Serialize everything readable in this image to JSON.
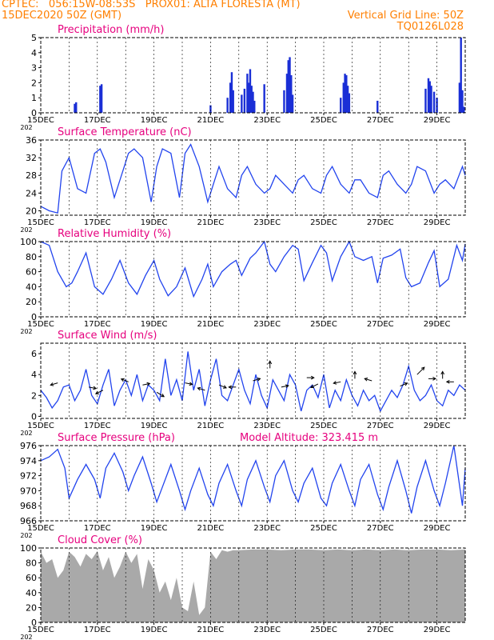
{
  "header": {
    "line1_left": "CPTEC:   056:15W-08:53S   PROX01: ALTA FLORESTA (MT)",
    "line2_left": "15DEC2020 50Z (GMT)",
    "line2_right": "Vertical Grid Line: 50Z",
    "line3_right": "TQ0126L028"
  },
  "colors": {
    "header": "#ff7f00",
    "title": "#e6007e",
    "line": "#2244ee",
    "bar": "#1a2fd6",
    "cloud": "#a9a9a9",
    "axis": "#000000"
  },
  "x_tick_labels": [
    "15DEC",
    "17DEC",
    "19DEC",
    "21DEC",
    "23DEC",
    "25DEC",
    "27DEC",
    "29DEC"
  ],
  "year_stub": "202",
  "chart_data": [
    {
      "type": "bar",
      "title": "Precipitation (mm/h)",
      "ylim": [
        0,
        5
      ],
      "yticks": [
        0,
        1,
        2,
        3,
        4,
        5
      ],
      "x_range_days": [
        15,
        30
      ],
      "bars": [
        [
          16.2,
          0.6
        ],
        [
          16.25,
          0.7
        ],
        [
          17.1,
          1.8
        ],
        [
          17.15,
          1.9
        ],
        [
          21.0,
          0.5
        ],
        [
          21.6,
          1.0
        ],
        [
          21.7,
          2.0
        ],
        [
          21.75,
          2.7
        ],
        [
          21.8,
          1.5
        ],
        [
          22.1,
          1.2
        ],
        [
          22.2,
          1.6
        ],
        [
          22.3,
          2.6
        ],
        [
          22.35,
          2.0
        ],
        [
          22.4,
          2.9
        ],
        [
          22.45,
          1.8
        ],
        [
          22.5,
          1.4
        ],
        [
          22.55,
          0.8
        ],
        [
          22.9,
          1.9
        ],
        [
          23.6,
          1.5
        ],
        [
          23.7,
          2.6
        ],
        [
          23.75,
          3.5
        ],
        [
          23.8,
          3.7
        ],
        [
          23.85,
          2.5
        ],
        [
          23.9,
          1.2
        ],
        [
          25.6,
          1.0
        ],
        [
          25.7,
          2.0
        ],
        [
          25.75,
          2.6
        ],
        [
          25.8,
          2.5
        ],
        [
          25.85,
          1.8
        ],
        [
          25.9,
          1.3
        ],
        [
          26.9,
          0.8
        ],
        [
          28.6,
          1.6
        ],
        [
          28.7,
          2.3
        ],
        [
          28.75,
          2.1
        ],
        [
          28.8,
          1.8
        ],
        [
          28.9,
          1.4
        ],
        [
          29.0,
          1.0
        ],
        [
          29.8,
          2.0
        ],
        [
          29.85,
          5.0
        ],
        [
          29.9,
          1.5
        ],
        [
          29.95,
          0.4
        ]
      ]
    },
    {
      "type": "line",
      "title": "Surface Temperature (nC)",
      "ylim": [
        19,
        36
      ],
      "yticks": [
        20,
        24,
        28,
        32,
        36
      ],
      "x": [
        15.0,
        15.3,
        15.6,
        15.75,
        16.0,
        16.3,
        16.6,
        16.9,
        17.1,
        17.3,
        17.6,
        17.9,
        18.1,
        18.3,
        18.6,
        18.9,
        19.1,
        19.3,
        19.6,
        19.9,
        20.1,
        20.3,
        20.6,
        20.9,
        21.1,
        21.3,
        21.6,
        21.9,
        22.1,
        22.3,
        22.6,
        22.9,
        23.1,
        23.3,
        23.6,
        23.9,
        24.1,
        24.3,
        24.6,
        24.9,
        25.1,
        25.3,
        25.6,
        25.9,
        26.1,
        26.3,
        26.6,
        26.9,
        27.1,
        27.3,
        27.6,
        27.9,
        28.1,
        28.3,
        28.6,
        28.9,
        29.1,
        29.3,
        29.6,
        29.9,
        30.0
      ],
      "y": [
        21,
        20,
        19.5,
        29,
        32,
        25,
        24,
        33,
        34,
        31,
        23,
        29,
        33,
        34,
        32,
        22,
        30,
        34,
        33,
        23,
        33,
        35,
        30,
        22,
        26,
        30,
        25,
        23,
        28,
        30,
        26,
        24,
        25,
        28,
        26,
        24,
        27,
        28,
        25,
        24,
        28,
        30,
        26,
        24,
        27,
        27,
        24,
        23,
        28,
        29,
        26,
        24,
        26,
        30,
        29,
        24,
        26,
        27,
        25,
        30,
        28
      ]
    },
    {
      "type": "line",
      "title": "Relative Humidity (%)",
      "ylim": [
        0,
        100
      ],
      "yticks": [
        0,
        20,
        40,
        60,
        80,
        100
      ],
      "x": [
        15.0,
        15.3,
        15.6,
        15.9,
        16.1,
        16.3,
        16.6,
        16.9,
        17.2,
        17.5,
        17.8,
        18.1,
        18.4,
        18.7,
        19.0,
        19.2,
        19.5,
        19.8,
        20.1,
        20.4,
        20.7,
        20.9,
        21.1,
        21.4,
        21.7,
        21.9,
        22.1,
        22.4,
        22.6,
        22.9,
        23.1,
        23.3,
        23.6,
        23.9,
        24.1,
        24.3,
        24.6,
        24.9,
        25.1,
        25.3,
        25.6,
        25.9,
        26.1,
        26.4,
        26.7,
        26.9,
        27.1,
        27.4,
        27.7,
        27.9,
        28.1,
        28.4,
        28.7,
        28.9,
        29.1,
        29.4,
        29.7,
        29.9,
        30.0
      ],
      "y": [
        100,
        95,
        60,
        40,
        45,
        60,
        85,
        40,
        30,
        50,
        75,
        45,
        30,
        55,
        75,
        50,
        28,
        40,
        65,
        27,
        50,
        70,
        40,
        60,
        70,
        75,
        55,
        78,
        85,
        100,
        70,
        60,
        80,
        95,
        90,
        48,
        72,
        95,
        85,
        48,
        80,
        100,
        80,
        75,
        80,
        45,
        78,
        82,
        90,
        52,
        40,
        45,
        72,
        88,
        40,
        50,
        95,
        75,
        97
      ]
    },
    {
      "type": "line",
      "title": "Surface Wind (m/s)",
      "ylim": [
        -0.2,
        7
      ],
      "yticks": [
        0,
        2,
        4,
        6
      ],
      "x": [
        15.0,
        15.2,
        15.4,
        15.6,
        15.8,
        16.0,
        16.2,
        16.4,
        16.6,
        16.8,
        17.0,
        17.2,
        17.4,
        17.6,
        17.8,
        18.0,
        18.2,
        18.4,
        18.6,
        18.8,
        19.0,
        19.2,
        19.4,
        19.6,
        19.8,
        20.0,
        20.2,
        20.4,
        20.6,
        20.8,
        21.0,
        21.2,
        21.4,
        21.6,
        21.8,
        22.0,
        22.2,
        22.4,
        22.6,
        22.8,
        23.0,
        23.2,
        23.4,
        23.6,
        23.8,
        24.0,
        24.2,
        24.4,
        24.6,
        24.8,
        25.0,
        25.2,
        25.4,
        25.6,
        25.8,
        26.0,
        26.2,
        26.4,
        26.6,
        26.8,
        27.0,
        27.2,
        27.4,
        27.6,
        27.8,
        28.0,
        28.2,
        28.4,
        28.6,
        28.8,
        29.0,
        29.2,
        29.4,
        29.6,
        29.8,
        30.0
      ],
      "y": [
        2.5,
        1.8,
        0.8,
        1.5,
        2.8,
        3.0,
        1.5,
        2.5,
        4.5,
        2.0,
        1.2,
        3.0,
        4.5,
        1.0,
        2.5,
        3.5,
        2.0,
        4.0,
        1.5,
        3.0,
        2.5,
        1.5,
        5.5,
        2.0,
        3.5,
        1.5,
        6.2,
        2.5,
        4.5,
        1.0,
        3.5,
        5.5,
        2.0,
        1.5,
        3.0,
        4.5,
        2.5,
        1.2,
        4.0,
        2.0,
        0.8,
        3.5,
        2.5,
        1.5,
        4.0,
        3.0,
        0.5,
        2.5,
        3.0,
        1.8,
        4.0,
        0.8,
        2.5,
        1.5,
        3.5,
        2.0,
        1.0,
        2.5,
        1.5,
        2.0,
        0.5,
        1.5,
        2.5,
        1.8,
        3.0,
        4.8,
        2.5,
        1.5,
        2.0,
        3.0,
        1.5,
        1.0,
        2.5,
        2.0,
        3.0,
        2.5
      ]
    },
    {
      "type": "line",
      "title": "Surface Pressure (hPa)",
      "annotation": "Model Altitude: 323.415 m",
      "ylim": [
        966,
        976
      ],
      "yticks": [
        966,
        968,
        970,
        972,
        974,
        976
      ],
      "x": [
        15.0,
        15.3,
        15.6,
        15.85,
        16.0,
        16.3,
        16.6,
        16.9,
        17.1,
        17.3,
        17.6,
        17.9,
        18.1,
        18.3,
        18.6,
        18.9,
        19.1,
        19.3,
        19.6,
        19.9,
        20.1,
        20.3,
        20.6,
        20.9,
        21.1,
        21.3,
        21.6,
        21.9,
        22.1,
        22.3,
        22.6,
        22.9,
        23.1,
        23.3,
        23.6,
        23.9,
        24.1,
        24.3,
        24.6,
        24.9,
        25.1,
        25.3,
        25.6,
        25.9,
        26.1,
        26.3,
        26.6,
        26.9,
        27.1,
        27.3,
        27.6,
        27.9,
        28.1,
        28.3,
        28.6,
        28.9,
        29.1,
        29.3,
        29.6,
        29.9,
        30.0
      ],
      "y": [
        974,
        974.5,
        975.5,
        973,
        969,
        971.5,
        973.5,
        971.5,
        969,
        973,
        975,
        972.5,
        970,
        972,
        974.5,
        971,
        968.5,
        970.5,
        973.5,
        970,
        967.5,
        970,
        973,
        969.5,
        968,
        971,
        973.5,
        970,
        968,
        971.5,
        974,
        970.5,
        968.5,
        972,
        974,
        970,
        968.5,
        971,
        973,
        969,
        968,
        971,
        973.5,
        970,
        968,
        971.5,
        973.5,
        969.5,
        967.5,
        970.5,
        974,
        970,
        967,
        970.5,
        974,
        970,
        968,
        971,
        976,
        968,
        973
      ]
    },
    {
      "type": "area",
      "title": "Cloud Cover (%)",
      "ylim": [
        0,
        100
      ],
      "yticks": [
        0,
        20,
        40,
        60,
        80,
        100
      ],
      "x": [
        15.0,
        15.2,
        15.4,
        15.6,
        15.8,
        16.0,
        16.2,
        16.4,
        16.6,
        16.8,
        17.0,
        17.2,
        17.4,
        17.6,
        17.8,
        18.0,
        18.2,
        18.4,
        18.6,
        18.8,
        19.0,
        19.2,
        19.4,
        19.6,
        19.8,
        20.0,
        20.2,
        20.4,
        20.6,
        20.8,
        21.0,
        21.2,
        21.4,
        21.6,
        21.8,
        22.0,
        22.5,
        23.0,
        23.5,
        24.0,
        24.5,
        25.0,
        25.5,
        26.0,
        26.5,
        27.0,
        27.5,
        28.0,
        28.5,
        29.0,
        29.5,
        30.0
      ],
      "y": [
        95,
        80,
        85,
        60,
        70,
        95,
        88,
        75,
        92,
        85,
        96,
        70,
        88,
        60,
        75,
        95,
        80,
        92,
        45,
        85,
        70,
        40,
        55,
        30,
        60,
        20,
        15,
        55,
        10,
        20,
        95,
        85,
        97,
        95,
        97,
        97,
        98,
        98,
        97,
        98,
        98,
        97,
        98,
        97,
        98,
        97,
        98,
        97,
        98,
        98,
        97,
        98
      ]
    }
  ]
}
